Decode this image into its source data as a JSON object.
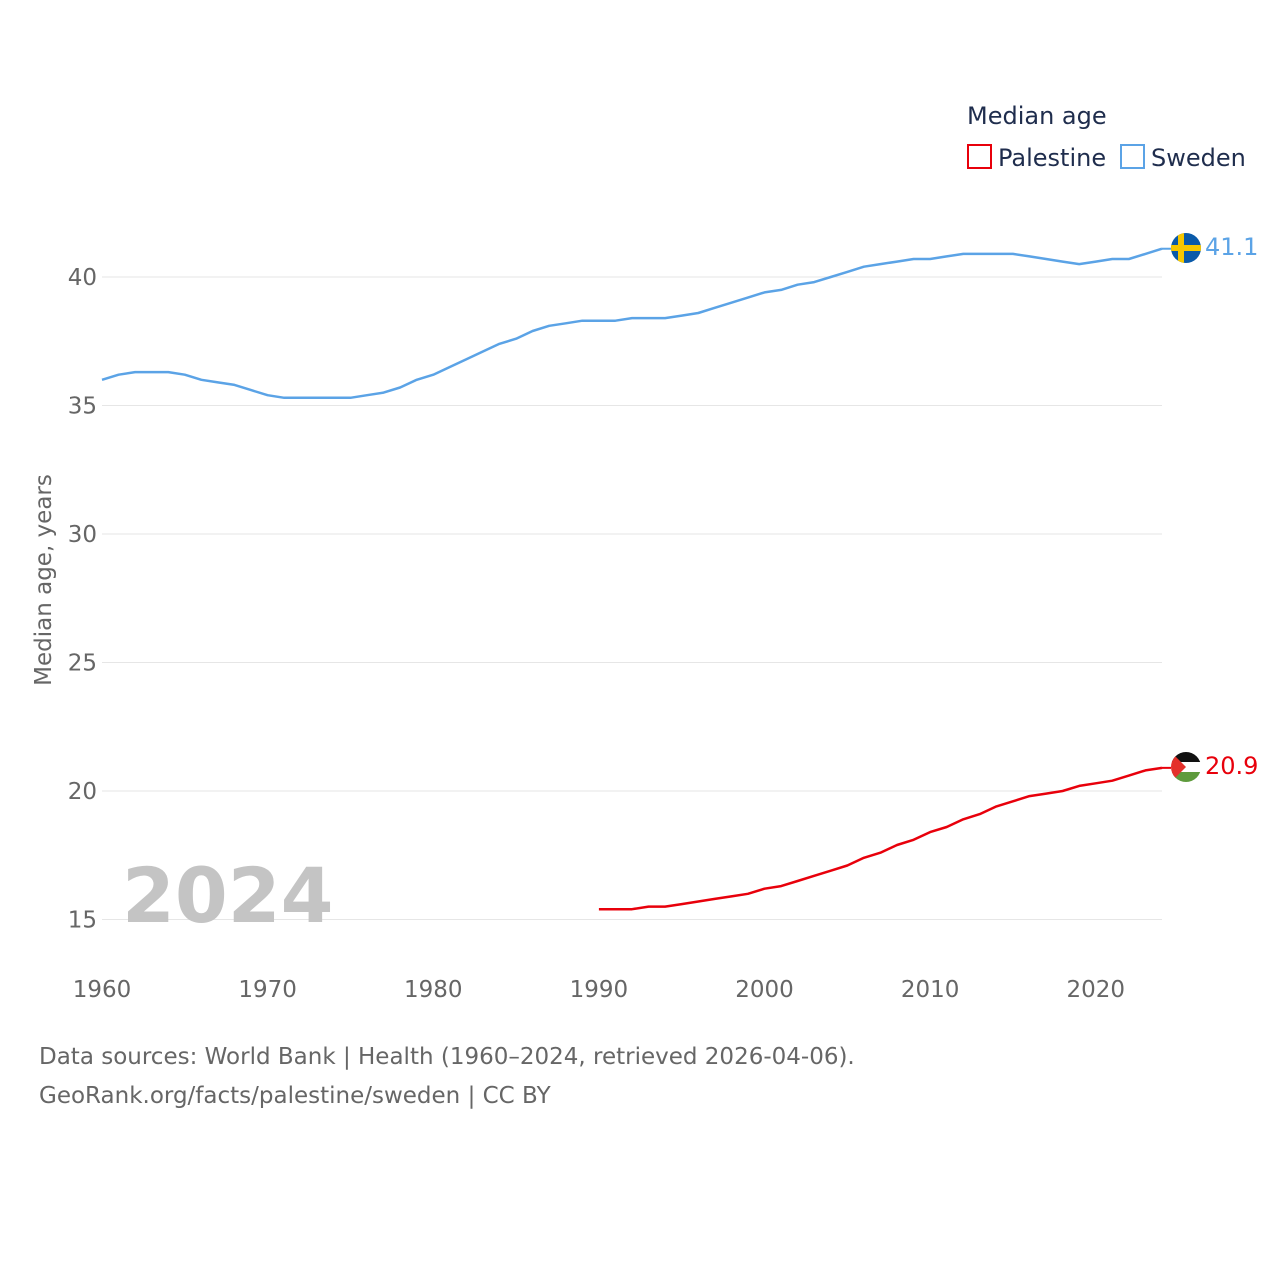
{
  "chart_data": {
    "type": "line",
    "title": "",
    "xlabel": "",
    "ylabel": "Median age, years",
    "xlim": [
      1960,
      2024
    ],
    "ylim": [
      13.5,
      42
    ],
    "x_ticks": [
      1960,
      1970,
      1980,
      1990,
      2000,
      2010,
      2020
    ],
    "y_ticks": [
      15,
      20,
      25,
      30,
      35,
      40
    ],
    "grid": "horizontal",
    "legend": {
      "title": "Median age",
      "position": "top-right"
    },
    "watermark_year": "2024",
    "series": [
      {
        "name": "Palestine",
        "color": "#e8000b",
        "flag": "palestine-flag",
        "end_label": "20.9",
        "x": [
          1990,
          1991,
          1992,
          1993,
          1994,
          1995,
          1996,
          1997,
          1998,
          1999,
          2000,
          2001,
          2002,
          2003,
          2004,
          2005,
          2006,
          2007,
          2008,
          2009,
          2010,
          2011,
          2012,
          2013,
          2014,
          2015,
          2016,
          2017,
          2018,
          2019,
          2020,
          2021,
          2022,
          2023,
          2024
        ],
        "values": [
          15.4,
          15.4,
          15.4,
          15.5,
          15.5,
          15.6,
          15.7,
          15.8,
          15.9,
          16.0,
          16.2,
          16.3,
          16.5,
          16.7,
          16.9,
          17.1,
          17.4,
          17.6,
          17.9,
          18.1,
          18.4,
          18.6,
          18.9,
          19.1,
          19.4,
          19.6,
          19.8,
          19.9,
          20.0,
          20.2,
          20.3,
          20.4,
          20.6,
          20.8,
          20.9
        ]
      },
      {
        "name": "Sweden",
        "color": "#5ba3e6",
        "flag": "sweden-flag",
        "end_label": "41.1",
        "x": [
          1960,
          1961,
          1962,
          1963,
          1964,
          1965,
          1966,
          1967,
          1968,
          1969,
          1970,
          1971,
          1972,
          1973,
          1974,
          1975,
          1976,
          1977,
          1978,
          1979,
          1980,
          1981,
          1982,
          1983,
          1984,
          1985,
          1986,
          1987,
          1988,
          1989,
          1990,
          1991,
          1992,
          1993,
          1994,
          1995,
          1996,
          1997,
          1998,
          1999,
          2000,
          2001,
          2002,
          2003,
          2004,
          2005,
          2006,
          2007,
          2008,
          2009,
          2010,
          2011,
          2012,
          2013,
          2014,
          2015,
          2016,
          2017,
          2018,
          2019,
          2020,
          2021,
          2022,
          2023,
          2024
        ],
        "values": [
          36.0,
          36.2,
          36.3,
          36.3,
          36.3,
          36.2,
          36.0,
          35.9,
          35.8,
          35.6,
          35.4,
          35.3,
          35.3,
          35.3,
          35.3,
          35.3,
          35.4,
          35.5,
          35.7,
          36.0,
          36.2,
          36.5,
          36.8,
          37.1,
          37.4,
          37.6,
          37.9,
          38.1,
          38.2,
          38.3,
          38.3,
          38.3,
          38.4,
          38.4,
          38.4,
          38.5,
          38.6,
          38.8,
          39.0,
          39.2,
          39.4,
          39.5,
          39.7,
          39.8,
          40.0,
          40.2,
          40.4,
          40.5,
          40.6,
          40.7,
          40.7,
          40.8,
          40.9,
          40.9,
          40.9,
          40.9,
          40.8,
          40.7,
          40.6,
          40.5,
          40.6,
          40.7,
          40.7,
          40.9,
          41.1
        ]
      }
    ]
  },
  "footer": {
    "source": "Data sources: World Bank | Health (1960–2024, retrieved 2026-04-06).",
    "credit": "GeoRank.org/facts/palestine/sweden | CC BY"
  }
}
